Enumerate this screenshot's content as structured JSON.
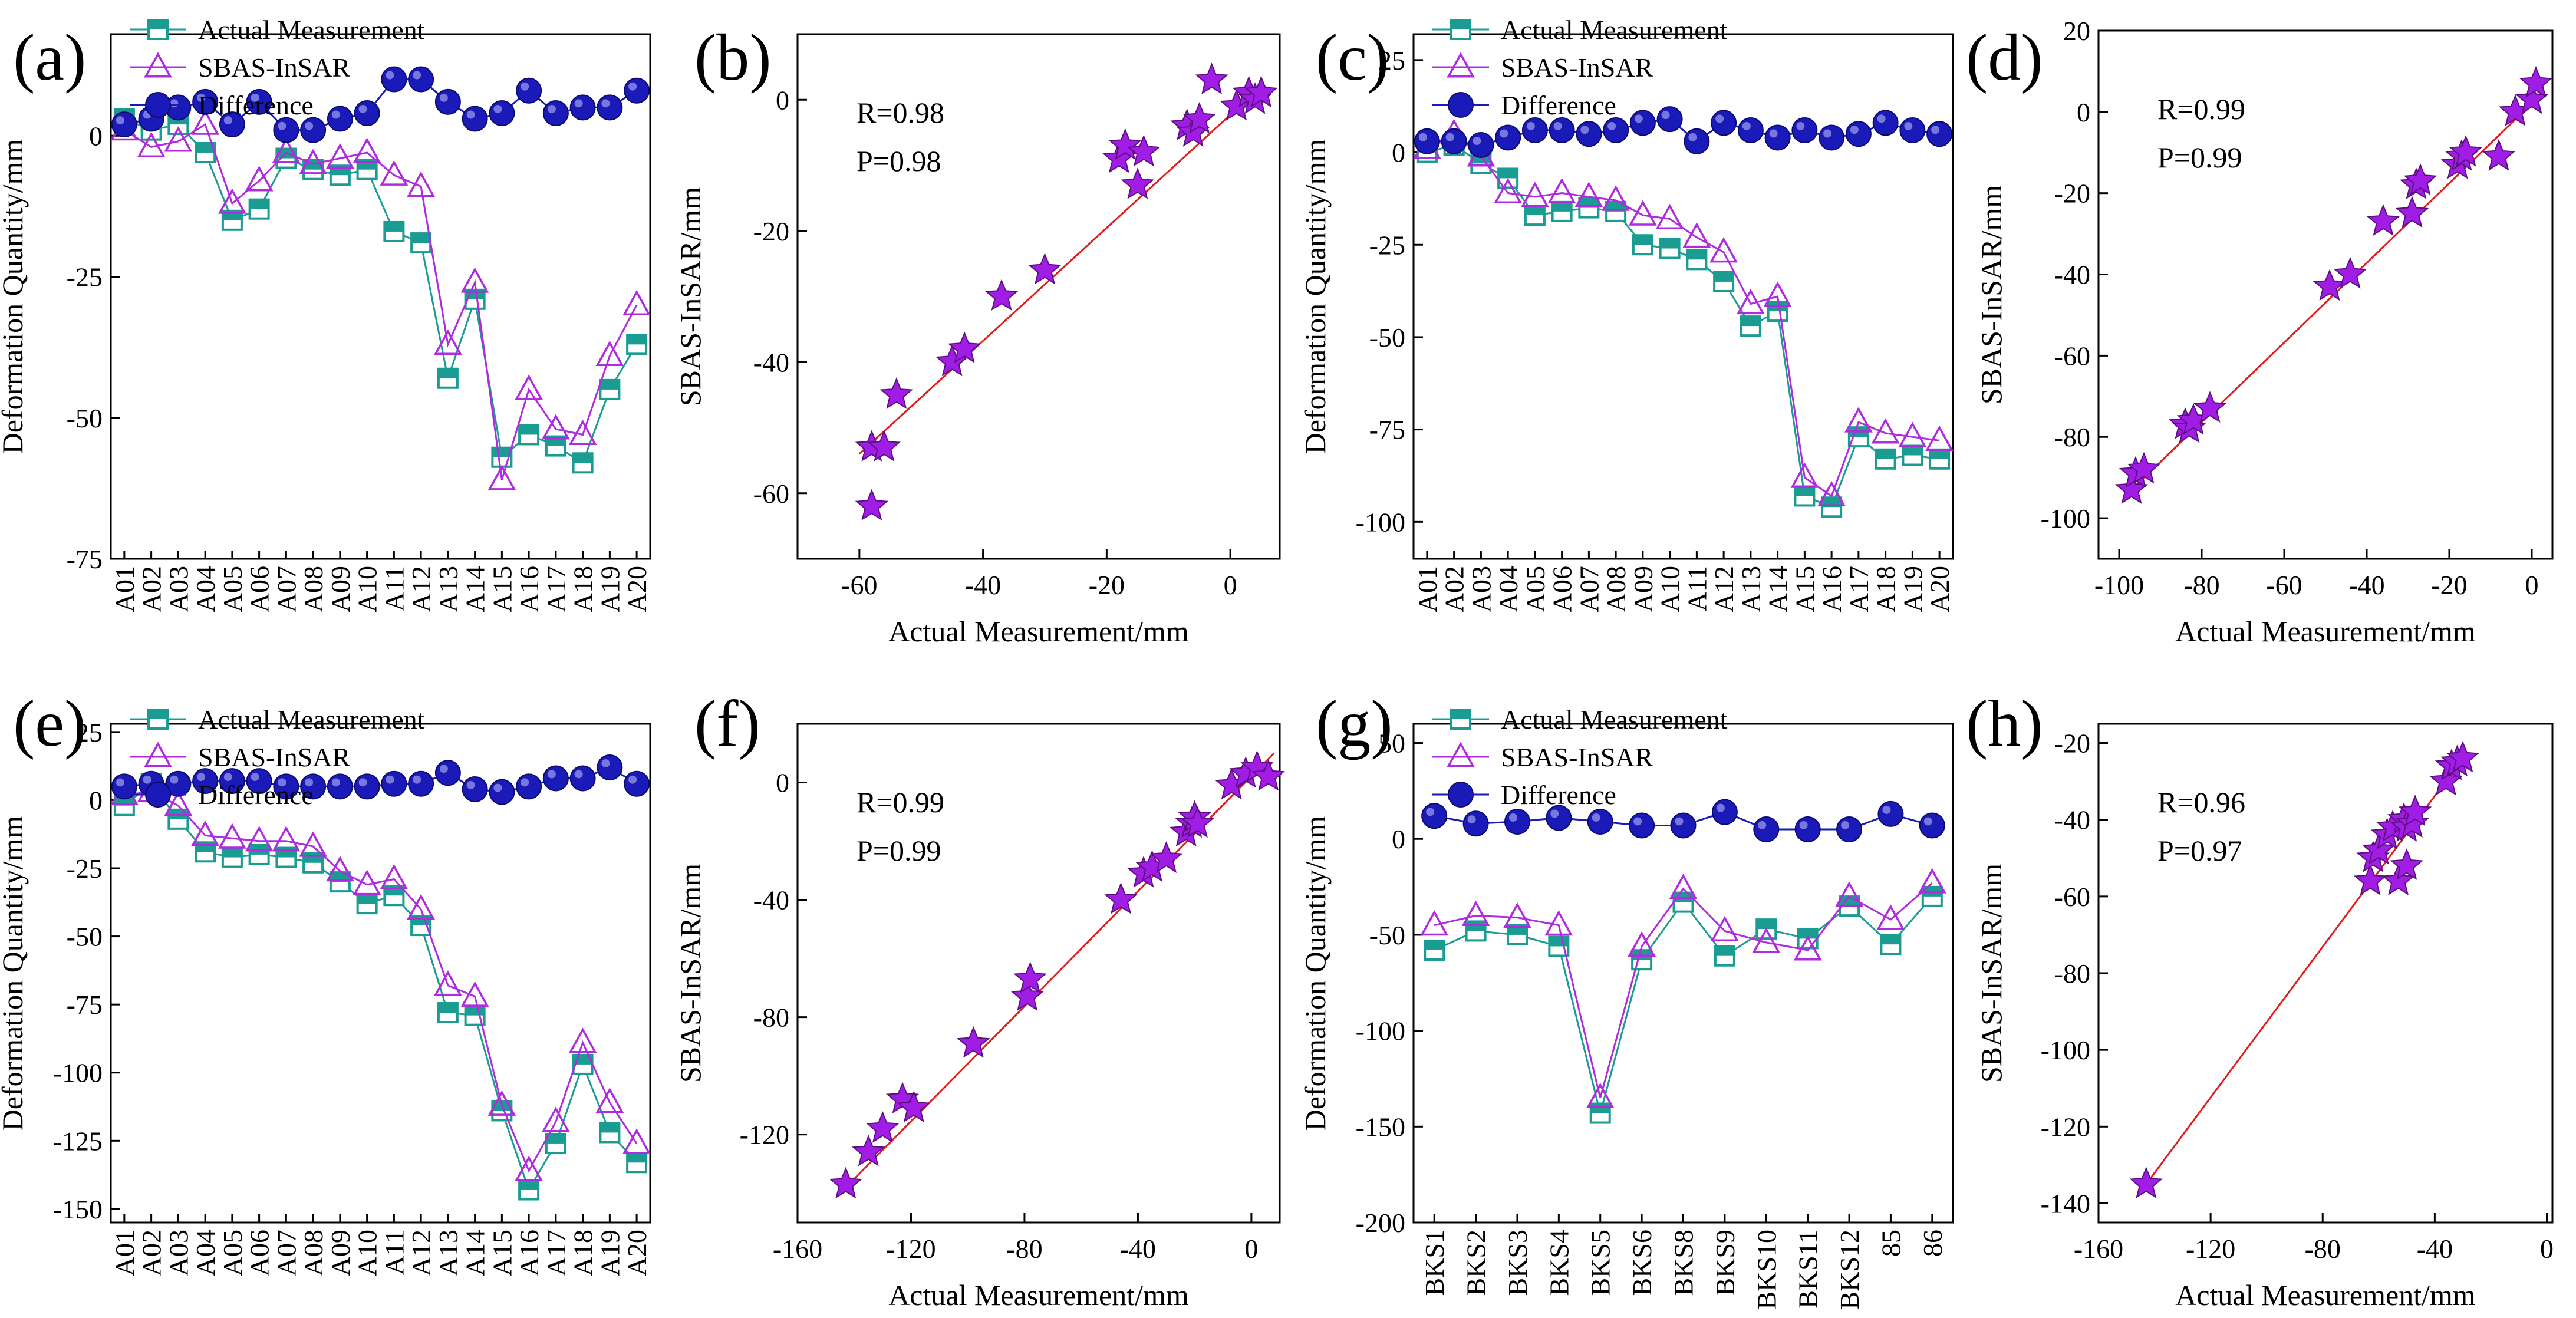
{
  "figure": {
    "colors": {
      "actual": "#1a9c93",
      "insar": "#b02ae0",
      "difference": "#1a1ab8",
      "scatter": "#a11de6",
      "fit_line": "#e21b1b",
      "axis": "#000000"
    }
  },
  "chart_data": [
    {
      "id": "a",
      "type": "line",
      "panel_label": "(a)",
      "xlabel": "",
      "ylabel": "Deformation Quantity/mm",
      "ylim": [
        -75,
        18
      ],
      "yticks": [
        -75,
        -50,
        -25,
        0
      ],
      "categories": [
        "A01",
        "A02",
        "A03",
        "A04",
        "A05",
        "A06",
        "A07",
        "A08",
        "A09",
        "A10",
        "A11",
        "A12",
        "A13",
        "A14",
        "A15",
        "A16",
        "A17",
        "A18",
        "A19",
        "A20"
      ],
      "legend": [
        "Actual Measurement",
        "SBAS-InSAR",
        "Difference"
      ],
      "series": [
        {
          "name": "Actual Measurement",
          "values": [
            3,
            1,
            2,
            -3,
            -15,
            -13,
            -4,
            -6,
            -7,
            -6,
            -17,
            -19,
            -43,
            -29,
            -57,
            -53,
            -55,
            -58,
            -45,
            -37
          ]
        },
        {
          "name": "SBAS-InSAR",
          "values": [
            1,
            -2,
            -1,
            2,
            -12,
            -8,
            -3,
            -5,
            -4,
            -3,
            -7,
            -9,
            -37,
            -26,
            -61,
            -45,
            -52,
            -53,
            -39,
            -30
          ]
        },
        {
          "name": "Difference",
          "values": [
            2,
            3,
            5,
            6,
            2,
            6,
            1,
            1,
            3,
            4,
            10,
            10,
            6,
            3,
            4,
            8,
            4,
            5,
            5,
            8
          ]
        }
      ]
    },
    {
      "id": "b",
      "type": "scatter",
      "panel_label": "(b)",
      "xlabel": "Actual Measurement/mm",
      "ylabel": "SBAS-InSAR/mm",
      "xlim": [
        -70,
        8
      ],
      "ylim": [
        -70,
        10
      ],
      "xticks": [
        -60,
        -40,
        -20,
        0
      ],
      "yticks": [
        -60,
        -40,
        -20,
        0
      ],
      "annotations": [
        "R=0.98",
        "P=0.98"
      ],
      "fit_line": [
        [
          -60,
          -54
        ],
        [
          5,
          2
        ]
      ],
      "points": [
        [
          -58,
          -62
        ],
        [
          -58,
          -53
        ],
        [
          -56,
          -53
        ],
        [
          -54,
          -45
        ],
        [
          -45,
          -40
        ],
        [
          -43,
          -38
        ],
        [
          -37,
          -30
        ],
        [
          -30,
          -26
        ],
        [
          -18,
          -9
        ],
        [
          -17,
          -7
        ],
        [
          -15,
          -13
        ],
        [
          -14,
          -8
        ],
        [
          -7,
          -4
        ],
        [
          -6,
          -5
        ],
        [
          -5,
          -3
        ],
        [
          -3,
          3
        ],
        [
          1,
          -1
        ],
        [
          3,
          1
        ],
        [
          4,
          0
        ],
        [
          5,
          1
        ]
      ]
    },
    {
      "id": "c",
      "type": "line",
      "panel_label": "(c)",
      "xlabel": "",
      "ylabel": "Deformation Quantity/mm",
      "ylim": [
        -110,
        32
      ],
      "yticks": [
        -100,
        -75,
        -50,
        -25,
        0,
        25
      ],
      "categories": [
        "A01",
        "A02",
        "A03",
        "A04",
        "A05",
        "A06",
        "A07",
        "A08",
        "A09",
        "A10",
        "A11",
        "A12",
        "A13",
        "A14",
        "A15",
        "A16",
        "A17",
        "A18",
        "A19",
        "A20"
      ],
      "legend": [
        "Actual Measurement",
        "SBAS-InSAR",
        "Difference"
      ],
      "series": [
        {
          "name": "Actual Measurement",
          "values": [
            0,
            2,
            -3,
            -7,
            -17,
            -16,
            -15,
            -16,
            -25,
            -26,
            -29,
            -35,
            -47,
            -43,
            -93,
            -96,
            -77,
            -83,
            -82,
            -83
          ]
        },
        {
          "name": "SBAS-InSAR",
          "values": [
            1,
            5,
            -1,
            -11,
            -12,
            -11,
            -12,
            -13,
            -17,
            -18,
            -23,
            -27,
            -41,
            -39,
            -88,
            -93,
            -73,
            -76,
            -77,
            -78
          ]
        },
        {
          "name": "Difference",
          "values": [
            3,
            3,
            2,
            4,
            6,
            6,
            5,
            6,
            8,
            9,
            3,
            8,
            6,
            4,
            6,
            4,
            5,
            8,
            6,
            5
          ]
        }
      ]
    },
    {
      "id": "d",
      "type": "scatter",
      "panel_label": "(d)",
      "xlabel": "Actual Measurement/mm",
      "ylabel": "SBAS-InSAR/mm",
      "xlim": [
        -105,
        5
      ],
      "ylim": [
        -110,
        20
      ],
      "xticks": [
        -100,
        -80,
        -60,
        -40,
        -20,
        0
      ],
      "yticks": [
        -100,
        -80,
        -60,
        -40,
        -20,
        0,
        20
      ],
      "annotations": [
        "R=0.99",
        "P=0.99"
      ],
      "fit_line": [
        [
          -98,
          -94
        ],
        [
          2,
          4
        ]
      ],
      "points": [
        [
          -97,
          -93
        ],
        [
          -96,
          -89
        ],
        [
          -94,
          -88
        ],
        [
          -84,
          -77
        ],
        [
          -83,
          -78
        ],
        [
          -82,
          -76
        ],
        [
          -78,
          -73
        ],
        [
          -49,
          -43
        ],
        [
          -44,
          -40
        ],
        [
          -36,
          -27
        ],
        [
          -29,
          -25
        ],
        [
          -28,
          -18
        ],
        [
          -27,
          -17
        ],
        [
          -18,
          -13
        ],
        [
          -17,
          -11
        ],
        [
          -16,
          -10
        ],
        [
          -8,
          -11
        ],
        [
          -4,
          0
        ],
        [
          0,
          3
        ],
        [
          1,
          7
        ]
      ]
    },
    {
      "id": "e",
      "type": "line",
      "panel_label": "(e)",
      "xlabel": "",
      "ylabel": "Deformation Quantity/mm",
      "ylim": [
        -155,
        28
      ],
      "yticks": [
        -150,
        -125,
        -100,
        -75,
        -50,
        -25,
        0,
        25
      ],
      "categories": [
        "A01",
        "A02",
        "A03",
        "A04",
        "A05",
        "A06",
        "A07",
        "A08",
        "A09",
        "A10",
        "A11",
        "A12",
        "A13",
        "A14",
        "A15",
        "A16",
        "A17",
        "A18",
        "A19",
        "A20"
      ],
      "legend": [
        "Actual Measurement",
        "SBAS-InSAR",
        "Difference"
      ],
      "series": [
        {
          "name": "Actual Measurement",
          "values": [
            -2,
            6,
            -7,
            -19,
            -21,
            -20,
            -21,
            -23,
            -30,
            -38,
            -35,
            -46,
            -78,
            -79,
            -114,
            -143,
            -126,
            -97,
            -122,
            -133
          ]
        },
        {
          "name": "SBAS-InSAR",
          "values": [
            2,
            3,
            -2,
            -13,
            -14,
            -15,
            -15,
            -17,
            -26,
            -31,
            -29,
            -40,
            -68,
            -72,
            -112,
            -136,
            -118,
            -89,
            -111,
            -126
          ]
        },
        {
          "name": "Difference",
          "values": [
            5,
            6,
            6,
            7,
            7,
            7,
            5,
            5,
            5,
            5,
            6,
            6,
            10,
            4,
            3,
            5,
            8,
            8,
            12,
            6
          ]
        }
      ]
    },
    {
      "id": "f",
      "type": "scatter",
      "panel_label": "(f)",
      "xlabel": "Actual Measurement/mm",
      "ylabel": "SBAS-InSAR/mm",
      "xlim": [
        -160,
        10
      ],
      "ylim": [
        -150,
        20
      ],
      "xticks": [
        -160,
        -120,
        -80,
        -40,
        0
      ],
      "yticks": [
        -120,
        -80,
        -40,
        0
      ],
      "annotations": [
        "R=0.99",
        "P=0.99"
      ],
      "fit_line": [
        [
          -145,
          -140
        ],
        [
          8,
          10
        ]
      ],
      "points": [
        [
          -143,
          -137
        ],
        [
          -135,
          -126
        ],
        [
          -130,
          -118
        ],
        [
          -123,
          -108
        ],
        [
          -119,
          -111
        ],
        [
          -98,
          -89
        ],
        [
          -79,
          -73
        ],
        [
          -78,
          -67
        ],
        [
          -46,
          -40
        ],
        [
          -38,
          -31
        ],
        [
          -35,
          -29
        ],
        [
          -30,
          -26
        ],
        [
          -23,
          -17
        ],
        [
          -21,
          -14
        ],
        [
          -20,
          -12
        ],
        [
          -19,
          -14
        ],
        [
          -7,
          -1
        ],
        [
          -2,
          3
        ],
        [
          2,
          5
        ],
        [
          6,
          2
        ]
      ]
    },
    {
      "id": "g",
      "type": "line",
      "panel_label": "(g)",
      "xlabel": "",
      "ylabel": "Deformation Quantity/mm",
      "ylim": [
        -200,
        60
      ],
      "yticks": [
        -200,
        -150,
        -100,
        -50,
        0,
        50
      ],
      "categories": [
        "BKS1",
        "BKS2",
        "BKS3",
        "BKS4",
        "BKS5",
        "BKS6",
        "BKS8",
        "BKS9",
        "BKS10",
        "BKS11",
        "BKS12",
        "85",
        "86"
      ],
      "legend": [
        "Actual Measurement",
        "SBAS-InSAR",
        "Difference"
      ],
      "series": [
        {
          "name": "Actual Measurement",
          "values": [
            -58,
            -48,
            -50,
            -56,
            -143,
            -63,
            -33,
            -61,
            -47,
            -52,
            -35,
            -55,
            -30
          ]
        },
        {
          "name": "SBAS-InSAR",
          "values": [
            -45,
            -40,
            -41,
            -45,
            -135,
            -56,
            -26,
            -48,
            -54,
            -58,
            -30,
            -42,
            -23
          ]
        },
        {
          "name": "Difference",
          "values": [
            12,
            8,
            9,
            11,
            9,
            7,
            7,
            14,
            5,
            5,
            5,
            13,
            7
          ]
        }
      ]
    },
    {
      "id": "h",
      "type": "scatter",
      "panel_label": "(h)",
      "xlabel": "Actual Measurement/mm",
      "ylabel": "SBAS-InSAR/mm",
      "xlim": [
        -160,
        2
      ],
      "ylim": [
        -145,
        -15
      ],
      "xticks": [
        -160,
        -120,
        -80,
        -40,
        0
      ],
      "yticks": [
        -140,
        -120,
        -100,
        -80,
        -60,
        -40,
        -20
      ],
      "annotations": [
        "R=0.96",
        "P=0.97"
      ],
      "fit_line": [
        [
          -143,
          -135
        ],
        [
          -30,
          -24
        ]
      ],
      "points": [
        [
          -143,
          -135
        ],
        [
          -63,
          -56
        ],
        [
          -62,
          -50
        ],
        [
          -60,
          -48
        ],
        [
          -57,
          -44
        ],
        [
          -55,
          -42
        ],
        [
          -53,
          -56
        ],
        [
          -51,
          -40
        ],
        [
          -50,
          -42
        ],
        [
          -50,
          -52
        ],
        [
          -48,
          -41
        ],
        [
          -47,
          -38
        ],
        [
          -36,
          -30
        ],
        [
          -34,
          -26
        ],
        [
          -32,
          -25
        ],
        [
          -30,
          -24
        ]
      ]
    }
  ]
}
